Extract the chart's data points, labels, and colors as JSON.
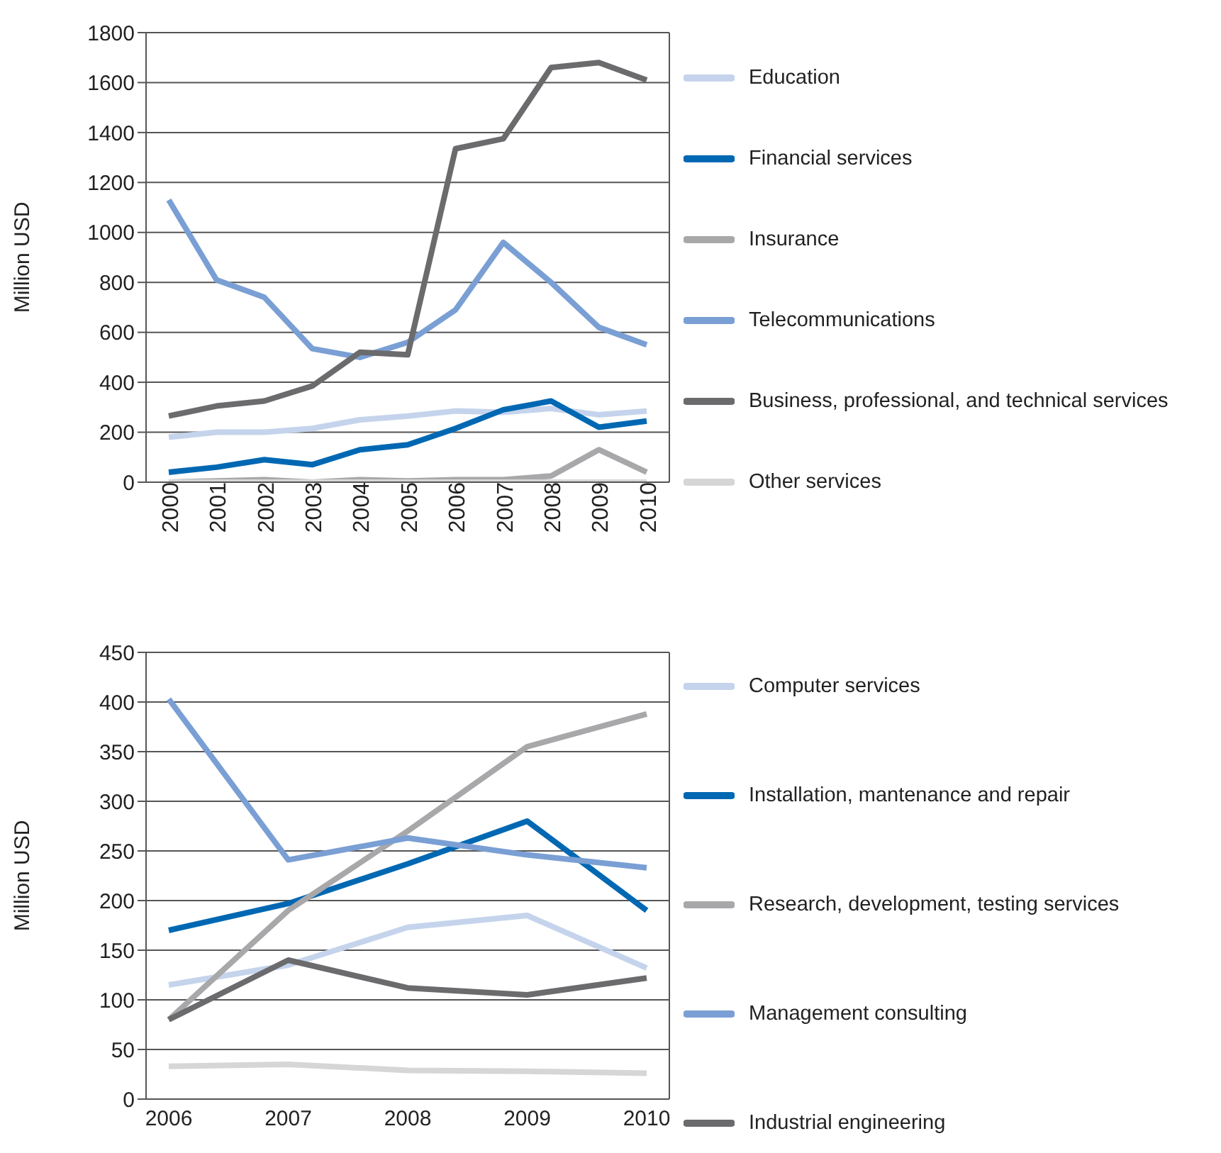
{
  "chart_data": [
    {
      "type": "line",
      "ylabel": "Million USD",
      "categories": [
        "2000",
        "2001",
        "2002",
        "2003",
        "2004",
        "2005",
        "2006",
        "2007",
        "2008",
        "2009",
        "2010"
      ],
      "ylim": [
        0,
        1800
      ],
      "yticks": [
        0,
        200,
        400,
        600,
        800,
        1000,
        1200,
        1400,
        1600,
        1800
      ],
      "grid": "y",
      "legend": "right",
      "series": [
        {
          "name": "Education",
          "color": "#c5d4ec",
          "values": [
            180,
            200,
            200,
            215,
            250,
            265,
            285,
            280,
            295,
            270,
            285
          ]
        },
        {
          "name": "Financial services",
          "color": "#0068b3",
          "values": [
            40,
            60,
            90,
            70,
            130,
            150,
            215,
            290,
            325,
            220,
            245
          ]
        },
        {
          "name": "Insurance",
          "color": "#a8a8aa",
          "values": [
            0,
            5,
            10,
            0,
            10,
            5,
            10,
            10,
            25,
            130,
            40
          ]
        },
        {
          "name": "Telecommunications",
          "color": "#7a9fd4",
          "values": [
            1130,
            810,
            740,
            535,
            500,
            560,
            690,
            960,
            800,
            620,
            550
          ]
        },
        {
          "name": "Business, professional, and technical services",
          "color": "#6b6b6e",
          "values": [
            265,
            305,
            325,
            385,
            520,
            510,
            1335,
            1375,
            1660,
            1680,
            1610
          ]
        },
        {
          "name": "Other services",
          "color": "#d6d6d6",
          "values": [
            0,
            0,
            0,
            0,
            0,
            0,
            0,
            0,
            0,
            0,
            0
          ]
        }
      ]
    },
    {
      "type": "line",
      "ylabel": "Million USD",
      "categories": [
        "2006",
        "2007",
        "2008",
        "2009",
        "2010"
      ],
      "ylim": [
        0,
        450
      ],
      "yticks": [
        0,
        50,
        100,
        150,
        200,
        250,
        300,
        350,
        400,
        450
      ],
      "grid": "y",
      "legend": "right",
      "series": [
        {
          "name": "Computer services",
          "color": "#c5d4ec",
          "values": [
            115,
            135,
            173,
            185,
            132
          ]
        },
        {
          "name": "Installation, mantenance and repair",
          "color": "#0068b3",
          "values": [
            170,
            197,
            237,
            280,
            190
          ]
        },
        {
          "name": "Research, development, testing services",
          "color": "#a8a8aa",
          "values": [
            80,
            190,
            270,
            355,
            388
          ]
        },
        {
          "name": "Management consulting",
          "color": "#7a9fd4",
          "values": [
            403,
            241,
            263,
            246,
            233
          ]
        },
        {
          "name": "Industrial engineering",
          "color": "#6b6b6e",
          "values": [
            80,
            140,
            112,
            105,
            122
          ]
        },
        {
          "color": "#d6d6d6",
          "values": [
            33,
            35,
            29,
            28,
            26
          ]
        }
      ]
    }
  ]
}
